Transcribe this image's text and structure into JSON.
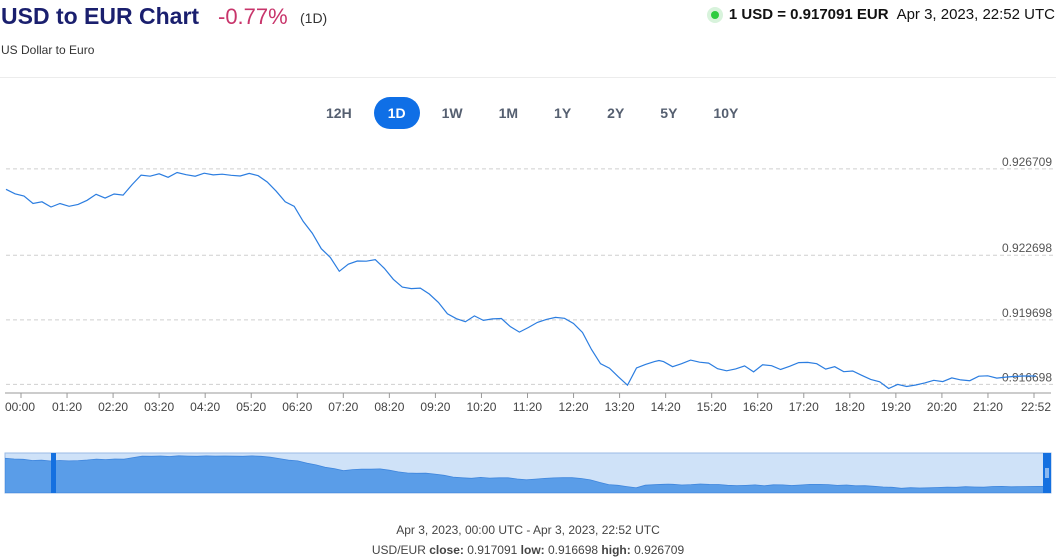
{
  "header": {
    "title": "USD to EUR Chart",
    "change": "-0.77%",
    "period": "(1D)",
    "subtitle": "US Dollar to Euro",
    "rate": "1 USD = 0.917091 EUR",
    "timestamp": "Apr 3, 2023, 22:52 UTC"
  },
  "ranges": [
    {
      "label": "12H",
      "active": false
    },
    {
      "label": "1D",
      "active": true
    },
    {
      "label": "1W",
      "active": false
    },
    {
      "label": "1M",
      "active": false
    },
    {
      "label": "1Y",
      "active": false
    },
    {
      "label": "2Y",
      "active": false
    },
    {
      "label": "5Y",
      "active": false
    },
    {
      "label": "10Y",
      "active": false
    }
  ],
  "footer": {
    "range": "Apr 3, 2023, 00:00 UTC - Apr 3, 2023, 22:52 UTC",
    "pair": "USD/EUR",
    "close_label": "close:",
    "close": "0.917091",
    "low_label": "low:",
    "low": "0.916698",
    "high_label": "high:",
    "high": "0.926709"
  },
  "colors": {
    "accent": "#0f6fe6",
    "line": "#2b7de0",
    "negative": "#c8356b",
    "live": "#2ecc40"
  },
  "chart_data": {
    "type": "line",
    "title": "",
    "xlabel": "",
    "ylabel": "",
    "x_ticks": [
      "00:00",
      "01:20",
      "02:20",
      "03:20",
      "04:20",
      "05:20",
      "06:20",
      "07:20",
      "08:20",
      "09:20",
      "10:20",
      "11:20",
      "12:20",
      "13:20",
      "14:20",
      "15:20",
      "16:20",
      "17:20",
      "18:20",
      "19:20",
      "20:20",
      "21:20",
      "22:52"
    ],
    "y_ticks": [
      0.926709,
      0.922698,
      0.919698,
      0.916698
    ],
    "y_tick_labels": [
      "0.926709",
      "0.922698",
      "0.919698",
      "0.916698"
    ],
    "ylim": [
      0.9163,
      0.9274
    ],
    "grid": "horizontal-dashed",
    "x_hours": [
      0,
      0.2,
      0.4,
      0.6,
      0.8,
      1.0,
      1.2,
      1.4,
      1.6,
      1.8,
      2.0,
      2.2,
      2.4,
      2.6,
      2.8,
      3.0,
      3.2,
      3.4,
      3.6,
      3.8,
      4.0,
      4.2,
      4.4,
      4.6,
      4.8,
      5.0,
      5.2,
      5.4,
      5.6,
      5.8,
      6.0,
      6.2,
      6.4,
      6.6,
      6.8,
      7.0,
      7.2,
      7.4,
      7.6,
      7.8,
      8.0,
      8.2,
      8.4,
      8.6,
      8.8,
      9.0,
      9.2,
      9.4,
      9.6,
      9.8,
      10.0,
      10.2,
      10.4,
      10.6,
      10.8,
      11.0,
      11.2,
      11.4,
      11.6,
      11.8,
      12.0,
      12.2,
      12.4,
      12.6,
      12.8,
      13.0,
      13.2,
      13.4,
      13.6,
      13.8,
      14.0,
      14.2,
      14.4,
      14.5,
      14.6,
      14.8,
      15.0,
      15.2,
      15.4,
      15.6,
      15.8,
      16.0,
      16.2,
      16.4,
      16.6,
      16.8,
      17.0,
      17.2,
      17.4,
      17.6,
      17.8,
      18.0,
      18.2,
      18.4,
      18.6,
      18.8,
      19.0,
      19.2,
      19.4,
      19.6,
      19.8,
      20.0,
      20.2,
      20.4,
      20.6,
      20.8,
      21.0,
      21.2,
      21.4,
      21.6,
      21.8,
      22.0,
      22.2,
      22.4,
      22.6,
      22.87
    ],
    "values": [
      0.92576,
      0.92555,
      0.92545,
      0.9251,
      0.92518,
      0.92494,
      0.9251,
      0.92497,
      0.92506,
      0.92525,
      0.92553,
      0.92535,
      0.92554,
      0.92549,
      0.92598,
      0.92642,
      0.92637,
      0.92648,
      0.92632,
      0.92654,
      0.92644,
      0.92637,
      0.92651,
      0.92643,
      0.92646,
      0.92641,
      0.92638,
      0.9265,
      0.92639,
      0.9261,
      0.92567,
      0.92518,
      0.92497,
      0.92427,
      0.92372,
      0.923,
      0.9226,
      0.92195,
      0.92228,
      0.92243,
      0.92242,
      0.92249,
      0.92209,
      0.92158,
      0.92122,
      0.92115,
      0.92117,
      0.9209,
      0.92051,
      0.91998,
      0.91975,
      0.91961,
      0.91988,
      0.91967,
      0.91974,
      0.91976,
      0.91938,
      0.91913,
      0.91934,
      0.91958,
      0.91972,
      0.91981,
      0.91977,
      0.91953,
      0.91911,
      0.91832,
      0.91766,
      0.91745,
      0.91705,
      0.91666,
      0.91746,
      0.91763,
      0.91776,
      0.91781,
      0.91776,
      0.91752,
      0.91766,
      0.91783,
      0.91773,
      0.91769,
      0.91743,
      0.91733,
      0.91742,
      0.91756,
      0.91728,
      0.91761,
      0.91757,
      0.91739,
      0.91754,
      0.91771,
      0.91772,
      0.91766,
      0.91741,
      0.91752,
      0.91729,
      0.91732,
      0.91712,
      0.91693,
      0.91682,
      0.91651,
      0.9167,
      0.9166,
      0.91667,
      0.91677,
      0.91689,
      0.91683,
      0.917,
      0.91691,
      0.91687,
      0.91708,
      0.9171,
      0.91699,
      0.91704,
      0.91707,
      0.91709,
      0.91709
    ]
  }
}
